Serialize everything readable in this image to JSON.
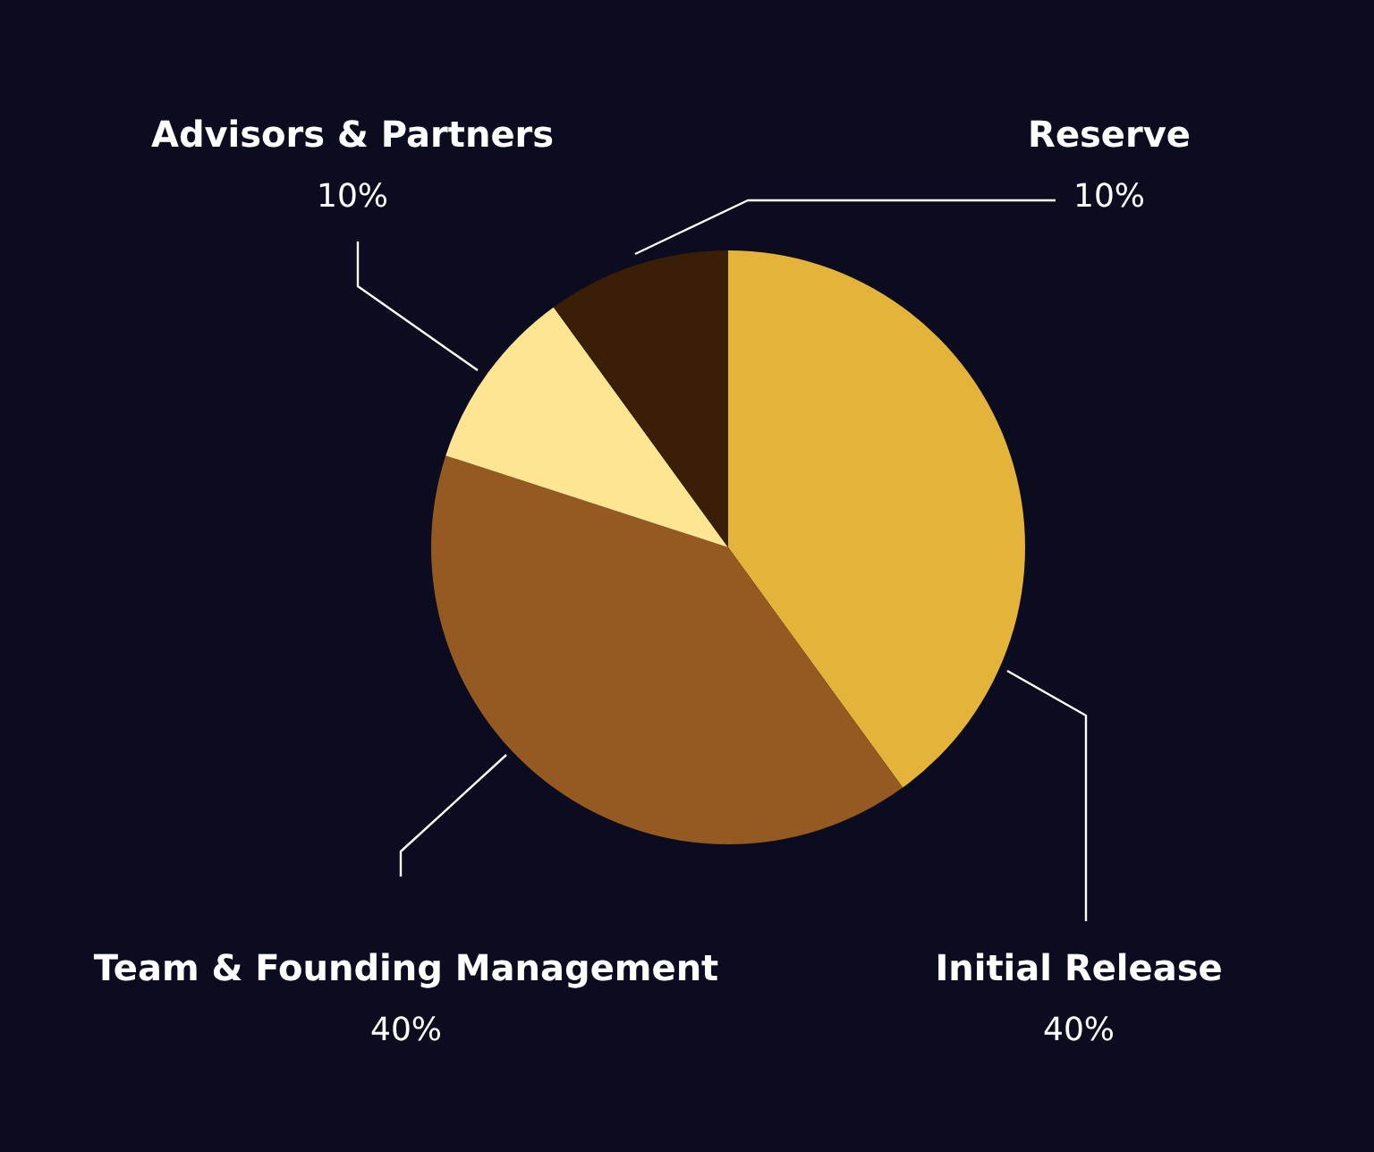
{
  "chart_data": {
    "type": "pie",
    "categories": [
      "Initial Release",
      "Team & Founding Management",
      "Advisors & Partners",
      "Reserve"
    ],
    "values": [
      40,
      40,
      10,
      10
    ],
    "value_labels": [
      "40%",
      "40%",
      "10%",
      "10%"
    ],
    "colors": [
      "#e4b43a",
      "#945a22",
      "#fde592",
      "#3a1f06"
    ],
    "legend": false
  }
}
